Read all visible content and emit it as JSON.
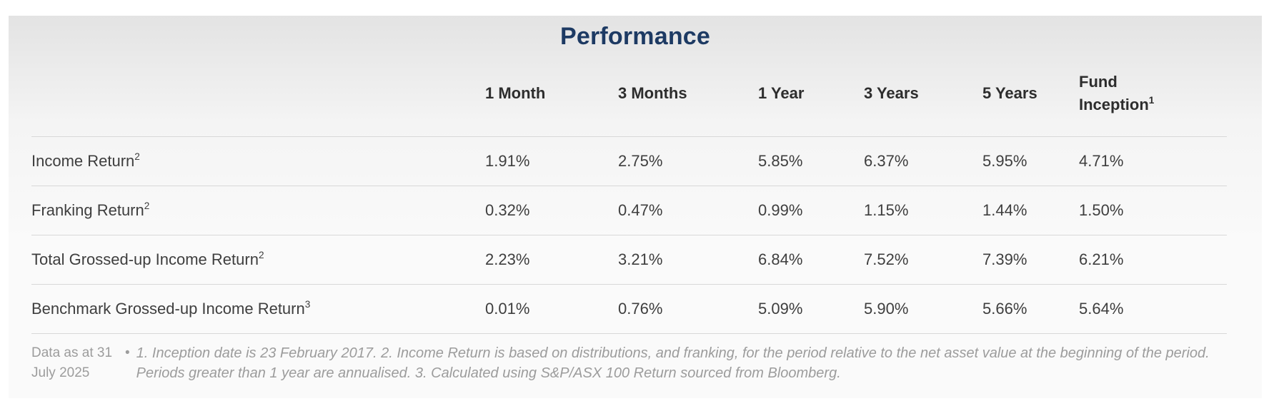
{
  "card": {
    "title": "Performance"
  },
  "table": {
    "columns": [
      {
        "label": "1 Month"
      },
      {
        "label": "3 Months"
      },
      {
        "label": "1 Year"
      },
      {
        "label": "3 Years"
      },
      {
        "label": "5 Years"
      },
      {
        "label": "Fund Inception",
        "sup": "1"
      }
    ],
    "rows": [
      {
        "label": "Income Return",
        "sup": "2",
        "values": [
          "1.91%",
          "2.75%",
          "5.85%",
          "6.37%",
          "5.95%",
          "4.71%"
        ]
      },
      {
        "label": "Franking Return",
        "sup": "2",
        "values": [
          "0.32%",
          "0.47%",
          "0.99%",
          "1.15%",
          "1.44%",
          "1.50%"
        ]
      },
      {
        "label": "Total Grossed-up Income Return",
        "sup": "2",
        "values": [
          "2.23%",
          "3.21%",
          "6.84%",
          "7.52%",
          "7.39%",
          "6.21%"
        ]
      },
      {
        "label": "Benchmark Grossed-up Income Return",
        "sup": "3",
        "values": [
          "0.01%",
          "0.76%",
          "5.09%",
          "5.90%",
          "5.66%",
          "5.64%"
        ]
      }
    ]
  },
  "footer": {
    "data_as_at": "Data as at 31 July 2025",
    "bullet": "•",
    "footnote": "1. Inception date is 23 February 2017. 2. Income Return is based on distributions, and franking, for the period relative to the net asset value at the beginning of the period. Periods greater than 1 year are annualised. 3. Calculated using S&P/ASX 100 Return sourced from Bloomberg."
  },
  "colors": {
    "title": "#1d3a63",
    "header_text": "#2d2d2d",
    "cell_text": "#3e3e3e",
    "divider": "#d8d8d8",
    "footer_text": "#9c9c9c",
    "card_gradient_top": "#e3e3e3",
    "card_gradient_bottom": "#fafafa",
    "page_background": "#ffffff"
  }
}
